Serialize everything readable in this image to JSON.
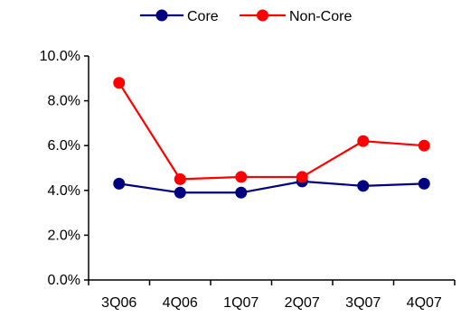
{
  "chart_data": {
    "type": "line",
    "title": "",
    "xlabel": "",
    "ylabel": "",
    "categories": [
      "3Q06",
      "4Q06",
      "1Q07",
      "2Q07",
      "3Q07",
      "4Q07"
    ],
    "ylim": [
      0,
      10
    ],
    "y_ticks": [
      0,
      2,
      4,
      6,
      8,
      10
    ],
    "y_tick_labels": [
      "0.0%",
      "2.0%",
      "4.0%",
      "6.0%",
      "8.0%",
      "10.0%"
    ],
    "grid": false,
    "legend_position": "top",
    "series": [
      {
        "name": "Core",
        "color": "#000080",
        "values": [
          4.3,
          3.9,
          3.9,
          4.4,
          4.2,
          4.3
        ]
      },
      {
        "name": "Non-Core",
        "color": "#ff0000",
        "values": [
          8.8,
          4.5,
          4.6,
          4.6,
          6.2,
          6.0
        ]
      }
    ]
  }
}
